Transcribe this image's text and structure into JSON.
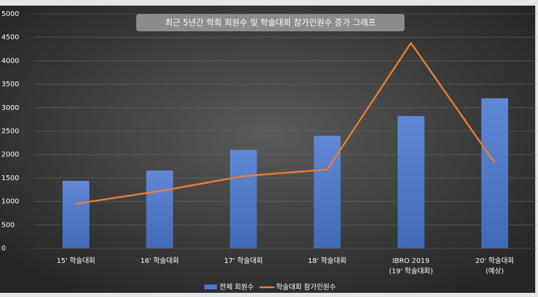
{
  "chart_data": {
    "type": "bar",
    "title": "최근 5년간 학회 회원수 및 학술대회 참가인원수 증가 그래프",
    "categories": [
      "15' 학술대회",
      "16' 학술대회",
      "17' 학술대회",
      "18' 학술대회",
      "IBRO 2019\n(19' 학술대회)",
      "20' 학술대회\n(예상)"
    ],
    "series": [
      {
        "name": "전체 회원수",
        "type": "bar",
        "color": "#4a78d0",
        "values": [
          1440,
          1660,
          2100,
          2400,
          2820,
          3200
        ]
      },
      {
        "name": "학술대회 참가인원수",
        "type": "line",
        "color": "#ed7d31",
        "values": [
          950,
          1220,
          1540,
          1680,
          4380,
          1820
        ]
      }
    ],
    "ylim": [
      0,
      5000
    ],
    "yticks": [
      0,
      500,
      1000,
      1500,
      2000,
      2500,
      3000,
      3500,
      4000,
      4500,
      5000
    ],
    "grid": true,
    "legend": "bottom"
  }
}
